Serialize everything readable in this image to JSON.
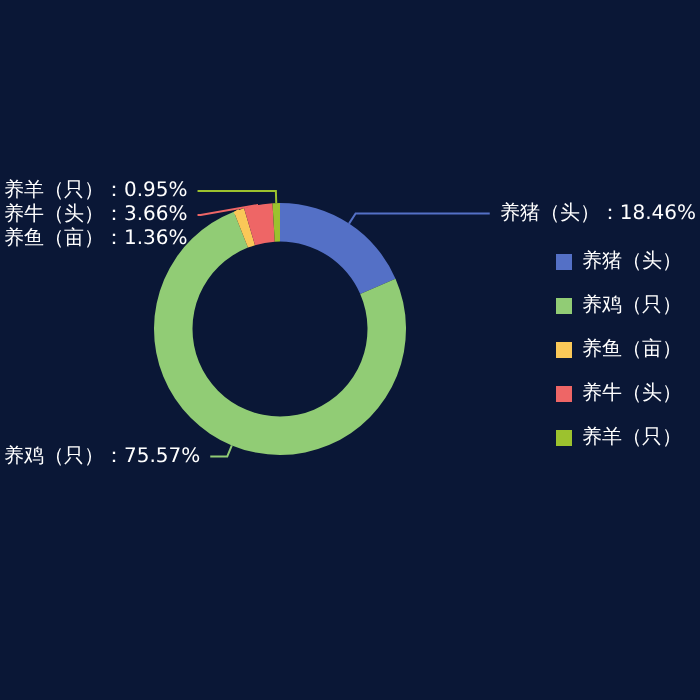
{
  "chart_data": {
    "type": "donut",
    "categories": [
      "养猪（头）",
      "养鸡（只）",
      "养鱼（亩）",
      "养牛（头）",
      "养羊（只）"
    ],
    "values": [
      18.46,
      75.57,
      1.36,
      3.66,
      0.95
    ],
    "value_labels": [
      "：18.46%",
      "：75.57%",
      "：1.36%",
      "：3.66%",
      "：0.95%"
    ],
    "colors": [
      "#5470c6",
      "#91cc75",
      "#fac858",
      "#ee6666",
      "#9cc22e"
    ],
    "legend": "right"
  }
}
